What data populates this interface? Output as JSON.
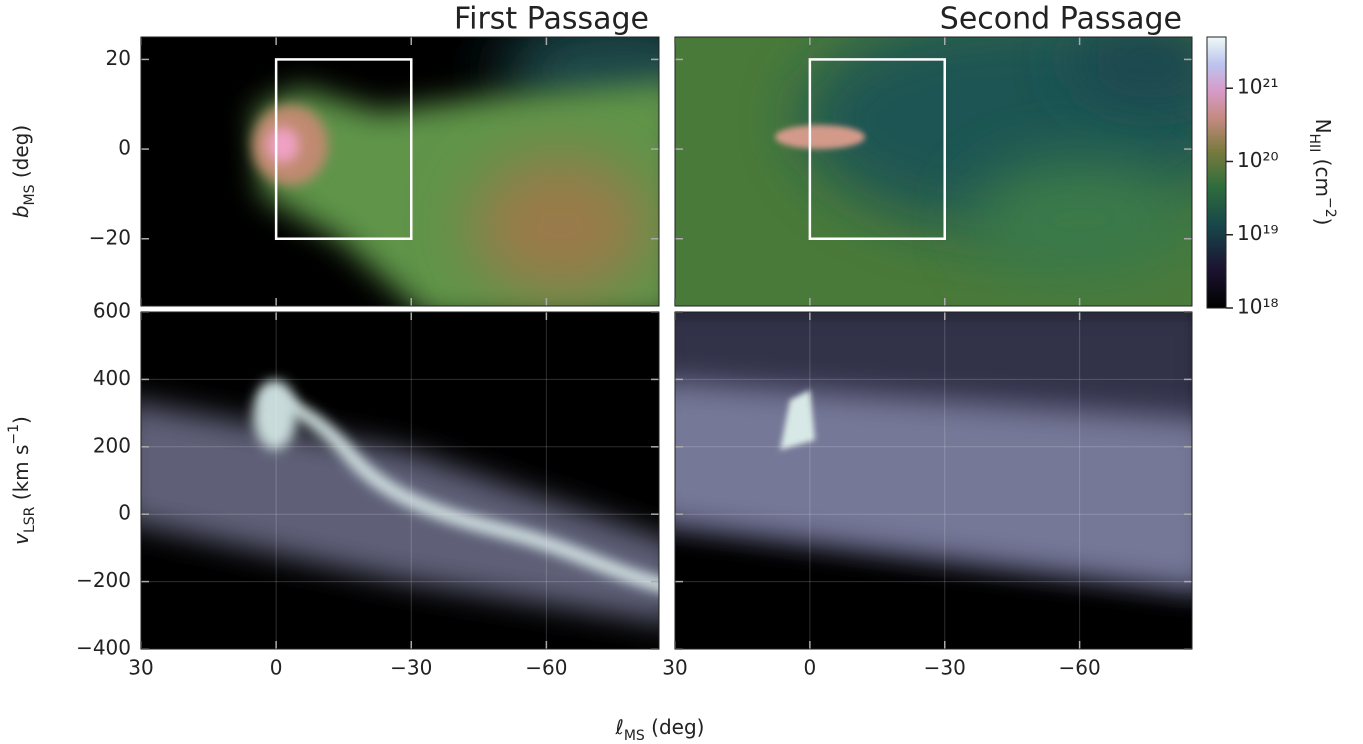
{
  "chart_data": [
    {
      "type": "heatmap",
      "title": "First Passage",
      "cmap": "cubehelix",
      "xlim": [
        30,
        -85
      ],
      "ylim": [
        -35,
        25
      ],
      "xticks": [
        30,
        0,
        {
          "value": -30,
          "label": "−30"
        },
        {
          "value": -60,
          "label": "−60"
        }
      ],
      "show_xtick_labels": false,
      "yticks": [
        20,
        0,
        {
          "value": -20,
          "label": "−20"
        }
      ],
      "show_ytick_labels": true,
      "ylabel": [
        {
          "t": "b",
          "italic": true
        },
        {
          "t": "MS",
          "sub": true
        },
        {
          "t": " (deg)"
        }
      ],
      "box": {
        "x": [
          0,
          -30
        ],
        "y": [
          -20,
          20
        ]
      },
      "grid": false
    },
    {
      "type": "heatmap",
      "title": "Second Passage",
      "cmap": "cubehelix",
      "xlim": [
        30,
        -85
      ],
      "ylim": [
        -35,
        25
      ],
      "xticks": [
        30,
        0,
        {
          "value": -30,
          "label": "−30"
        },
        {
          "value": -60,
          "label": "−60"
        }
      ],
      "show_xtick_labels": false,
      "yticks": [
        20,
        0,
        {
          "value": -20,
          "label": "−20"
        }
      ],
      "show_ytick_labels": false,
      "box": {
        "x": [
          0,
          -30
        ],
        "y": [
          -20,
          20
        ]
      },
      "grid": false
    },
    {
      "type": "heatmap",
      "cmap": "bone",
      "xlim": [
        30,
        -85
      ],
      "ylim": [
        -400,
        600
      ],
      "xticks": [
        30,
        0,
        {
          "value": -30,
          "label": "−30"
        },
        {
          "value": -60,
          "label": "−60"
        }
      ],
      "show_xtick_labels": true,
      "yticks": [
        {
          "value": -400,
          "label": "−400"
        },
        {
          "value": -200,
          "label": "−200"
        },
        0,
        200,
        400,
        600
      ],
      "show_ytick_labels": true,
      "ylabel": [
        {
          "t": "v",
          "italic": true
        },
        {
          "t": "LSR",
          "sub": true
        },
        {
          "t": " (km s"
        },
        {
          "t": "−1",
          "sup": true
        },
        {
          "t": ")"
        }
      ],
      "grid": true
    },
    {
      "type": "heatmap",
      "cmap": "bone",
      "xlim": [
        30,
        -85
      ],
      "ylim": [
        -400,
        600
      ],
      "xticks": [
        30,
        0,
        {
          "value": -30,
          "label": "−30"
        },
        {
          "value": -60,
          "label": "−60"
        }
      ],
      "show_xtick_labels": true,
      "yticks": [
        {
          "value": -400,
          "label": "−400"
        },
        {
          "value": -200,
          "label": "−200"
        },
        0,
        200,
        400,
        600
      ],
      "show_ytick_labels": false,
      "grid": true
    }
  ],
  "figure": {
    "xlabel": [
      {
        "t": "ℓ",
        "italic": true
      },
      {
        "t": "MS",
        "sub": true
      },
      {
        "t": " (deg)"
      }
    ],
    "colorbar": {
      "clim": [
        1e+18,
        5e+21
      ],
      "log": true,
      "ticks": [
        {
          "value": 1e+18,
          "label": "10¹⁸"
        },
        {
          "value": 1e+19,
          "label": "10¹⁹"
        },
        {
          "value": 1e+20,
          "label": "10²⁰"
        },
        {
          "value": 1e+21,
          "label": "10²¹"
        }
      ],
      "label": [
        {
          "t": "N"
        },
        {
          "t": "HII",
          "sub": true
        },
        {
          "t": " (cm"
        },
        {
          "t": "−2",
          "sup": true
        },
        {
          "t": ")"
        }
      ]
    }
  }
}
